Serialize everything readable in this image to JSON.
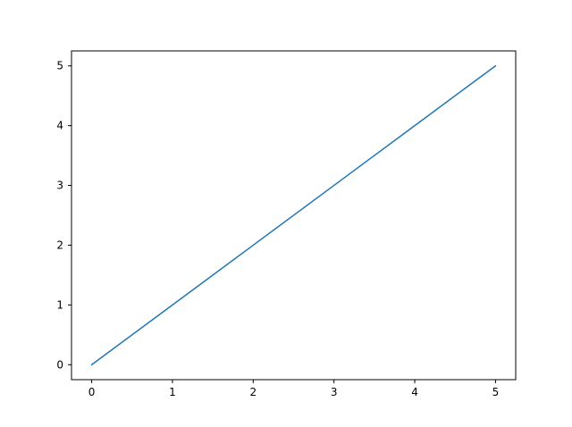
{
  "figure": {
    "background": "#ffffff"
  },
  "chart_data": {
    "type": "line",
    "title": "",
    "xlabel": "",
    "ylabel": "",
    "x": [
      0,
      1,
      2,
      3,
      4,
      5
    ],
    "series": [
      {
        "name": "",
        "values": [
          0,
          1,
          2,
          3,
          4,
          5
        ],
        "color": "#1f77b4",
        "line_width": 1.5
      }
    ],
    "xlim": [
      -0.25,
      5.25
    ],
    "ylim": [
      -0.25,
      5.25
    ],
    "x_tick_labels": [
      "0",
      "1",
      "2",
      "3",
      "4",
      "5"
    ],
    "y_tick_labels": [
      "0",
      "1",
      "2",
      "3",
      "4",
      "5"
    ],
    "x_tick_values": [
      0,
      1,
      2,
      3,
      4,
      5
    ],
    "y_tick_values": [
      0,
      1,
      2,
      3,
      4,
      5
    ],
    "grid": false,
    "legend": null,
    "axes_color": "#000000",
    "tick_label_color": "#000000"
  }
}
